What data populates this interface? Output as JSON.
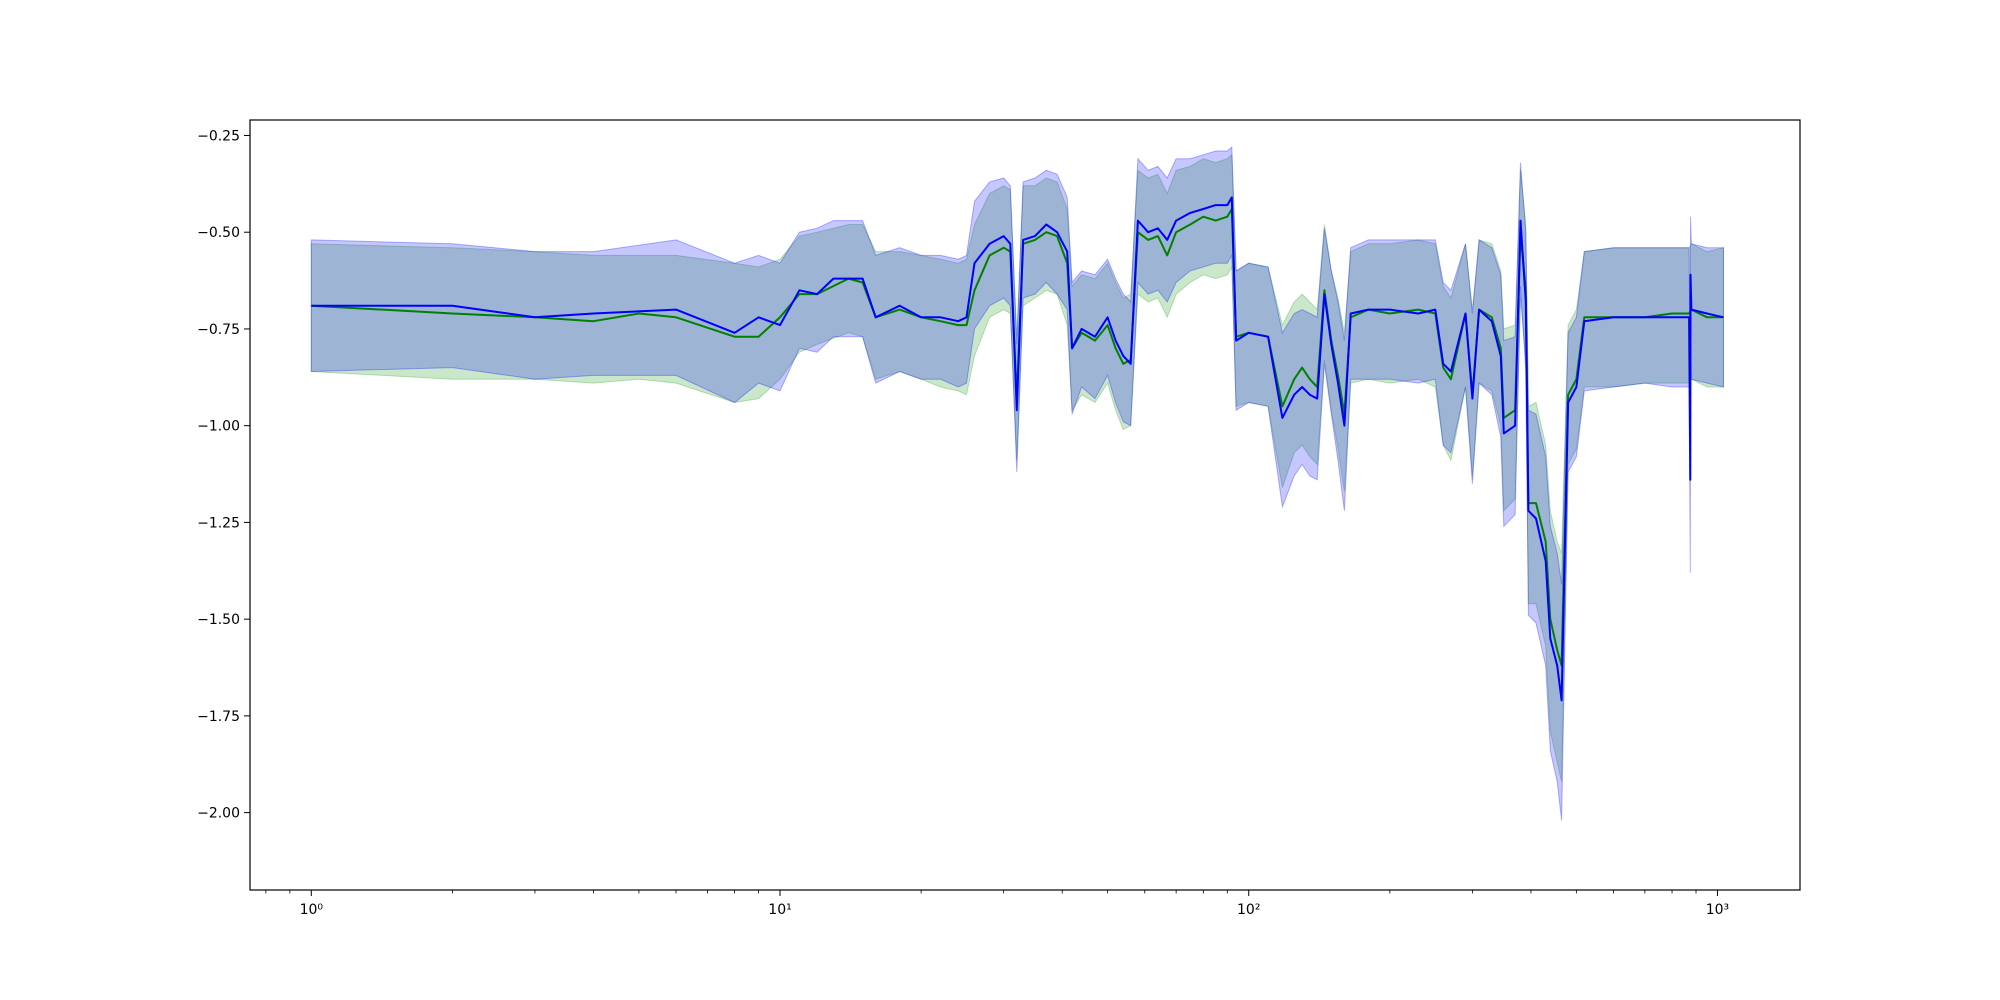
{
  "chart_data": {
    "type": "line",
    "xscale": "log",
    "xlim": [
      0.74,
      1500
    ],
    "ylim": [
      -2.2,
      -0.21
    ],
    "grid": false,
    "x_ticks": [
      {
        "value": 1,
        "label": "10⁰"
      },
      {
        "value": 10,
        "label": "10¹"
      },
      {
        "value": 100,
        "label": "10²"
      },
      {
        "value": 1000,
        "label": "10³"
      }
    ],
    "y_ticks": [
      {
        "value": -0.25,
        "label": "−0.25"
      },
      {
        "value": -0.5,
        "label": "−0.50"
      },
      {
        "value": -0.75,
        "label": "−0.75"
      },
      {
        "value": -1.0,
        "label": "−1.00"
      },
      {
        "value": -1.25,
        "label": "−1.25"
      },
      {
        "value": -1.5,
        "label": "−1.50"
      },
      {
        "value": -1.75,
        "label": "−1.75"
      },
      {
        "value": -2.0,
        "label": "−2.00"
      }
    ],
    "series": [
      {
        "color": "#008000",
        "band_color": "#2ca02c",
        "points": [
          [
            1,
            -0.69,
            -0.53,
            -0.86
          ],
          [
            2,
            -0.71,
            -0.54,
            -0.88
          ],
          [
            3,
            -0.72,
            -0.55,
            -0.88
          ],
          [
            4,
            -0.73,
            -0.56,
            -0.89
          ],
          [
            5,
            -0.71,
            -0.56,
            -0.88
          ],
          [
            6,
            -0.72,
            -0.56,
            -0.89
          ],
          [
            8,
            -0.77,
            -0.58,
            -0.94
          ],
          [
            9,
            -0.77,
            -0.59,
            -0.93
          ],
          [
            10,
            -0.72,
            -0.57,
            -0.88
          ],
          [
            11,
            -0.66,
            -0.51,
            -0.81
          ],
          [
            12,
            -0.66,
            -0.5,
            -0.79
          ],
          [
            14,
            -0.62,
            -0.48,
            -0.76
          ],
          [
            15,
            -0.63,
            -0.48,
            -0.77
          ],
          [
            16,
            -0.72,
            -0.55,
            -0.88
          ],
          [
            18,
            -0.7,
            -0.55,
            -0.86
          ],
          [
            20,
            -0.72,
            -0.56,
            -0.88
          ],
          [
            22,
            -0.73,
            -0.57,
            -0.9
          ],
          [
            24,
            -0.74,
            -0.58,
            -0.91
          ],
          [
            25,
            -0.74,
            -0.57,
            -0.92
          ],
          [
            26,
            -0.65,
            -0.48,
            -0.82
          ],
          [
            28,
            -0.56,
            -0.4,
            -0.72
          ],
          [
            30,
            -0.54,
            -0.38,
            -0.7
          ],
          [
            31,
            -0.55,
            -0.39,
            -0.71
          ],
          [
            32,
            -0.93,
            -0.77,
            -1.09
          ],
          [
            33,
            -0.53,
            -0.38,
            -0.69
          ],
          [
            35,
            -0.52,
            -0.38,
            -0.67
          ],
          [
            37,
            -0.5,
            -0.36,
            -0.65
          ],
          [
            39,
            -0.51,
            -0.37,
            -0.66
          ],
          [
            41,
            -0.58,
            -0.44,
            -0.74
          ],
          [
            42,
            -0.8,
            -0.64,
            -0.96
          ],
          [
            44,
            -0.76,
            -0.61,
            -0.92
          ],
          [
            47,
            -0.78,
            -0.62,
            -0.94
          ],
          [
            50,
            -0.74,
            -0.58,
            -0.89
          ],
          [
            52,
            -0.8,
            -0.63,
            -0.96
          ],
          [
            54,
            -0.84,
            -0.67,
            -1.01
          ],
          [
            56,
            -0.83,
            -0.66,
            -1.0
          ],
          [
            58,
            -0.5,
            -0.34,
            -0.66
          ],
          [
            61,
            -0.52,
            -0.36,
            -0.68
          ],
          [
            64,
            -0.51,
            -0.35,
            -0.67
          ],
          [
            67,
            -0.56,
            -0.4,
            -0.72
          ],
          [
            70,
            -0.5,
            -0.34,
            -0.66
          ],
          [
            75,
            -0.48,
            -0.33,
            -0.63
          ],
          [
            80,
            -0.46,
            -0.31,
            -0.61
          ],
          [
            85,
            -0.47,
            -0.32,
            -0.62
          ],
          [
            90,
            -0.46,
            -0.31,
            -0.61
          ],
          [
            92,
            -0.44,
            -0.3,
            -0.59
          ],
          [
            94,
            -0.77,
            -0.6,
            -0.95
          ],
          [
            100,
            -0.76,
            -0.58,
            -0.94
          ],
          [
            110,
            -0.77,
            -0.59,
            -0.95
          ],
          [
            118,
            -0.95,
            -0.74,
            -1.16
          ],
          [
            125,
            -0.88,
            -0.68,
            -1.07
          ],
          [
            130,
            -0.85,
            -0.66,
            -1.05
          ],
          [
            135,
            -0.88,
            -0.68,
            -1.08
          ],
          [
            140,
            -0.9,
            -0.7,
            -1.1
          ],
          [
            145,
            -0.65,
            -0.48,
            -0.83
          ],
          [
            150,
            -0.78,
            -0.6,
            -0.96
          ],
          [
            155,
            -0.87,
            -0.67,
            -1.06
          ],
          [
            160,
            -0.97,
            -0.76,
            -1.17
          ],
          [
            165,
            -0.72,
            -0.55,
            -0.89
          ],
          [
            180,
            -0.7,
            -0.53,
            -0.88
          ],
          [
            200,
            -0.71,
            -0.53,
            -0.89
          ],
          [
            230,
            -0.7,
            -0.52,
            -0.88
          ],
          [
            250,
            -0.71,
            -0.53,
            -0.9
          ],
          [
            260,
            -0.85,
            -0.64,
            -1.05
          ],
          [
            270,
            -0.88,
            -0.67,
            -1.09
          ],
          [
            290,
            -0.71,
            -0.53,
            -0.9
          ],
          [
            300,
            -0.92,
            -0.7,
            -1.13
          ],
          [
            310,
            -0.7,
            -0.52,
            -0.89
          ],
          [
            330,
            -0.72,
            -0.53,
            -0.91
          ],
          [
            345,
            -0.8,
            -0.6,
            -1.0
          ],
          [
            350,
            -0.98,
            -0.75,
            -1.22
          ],
          [
            370,
            -0.96,
            -0.74,
            -1.19
          ],
          [
            380,
            -0.5,
            -0.34,
            -0.67
          ],
          [
            390,
            -0.65,
            -0.48,
            -0.83
          ],
          [
            395,
            -1.2,
            -0.95,
            -1.46
          ],
          [
            410,
            -1.2,
            -0.94,
            -1.46
          ],
          [
            430,
            -1.3,
            -1.05,
            -1.57
          ],
          [
            440,
            -1.5,
            -1.22,
            -1.79
          ],
          [
            455,
            -1.58,
            -1.3,
            -1.87
          ],
          [
            465,
            -1.62,
            -1.33,
            -1.92
          ],
          [
            480,
            -0.92,
            -0.74,
            -1.1
          ],
          [
            500,
            -0.88,
            -0.7,
            -1.06
          ],
          [
            520,
            -0.72,
            -0.55,
            -0.9
          ],
          [
            600,
            -0.72,
            -0.54,
            -0.9
          ],
          [
            700,
            -0.72,
            -0.54,
            -0.89
          ],
          [
            800,
            -0.71,
            -0.54,
            -0.89
          ],
          [
            870,
            -0.71,
            -0.54,
            -0.89
          ],
          [
            880,
            -0.7,
            -0.53,
            -0.88
          ],
          [
            950,
            -0.72,
            -0.55,
            -0.9
          ],
          [
            1030,
            -0.72,
            -0.54,
            -0.9
          ]
        ]
      },
      {
        "color": "#0000ff",
        "band_color": "#0000ff",
        "points": [
          [
            1,
            -0.69,
            -0.52,
            -0.86
          ],
          [
            2,
            -0.69,
            -0.53,
            -0.85
          ],
          [
            3,
            -0.72,
            -0.55,
            -0.88
          ],
          [
            4,
            -0.71,
            -0.55,
            -0.87
          ],
          [
            6,
            -0.7,
            -0.52,
            -0.87
          ],
          [
            8,
            -0.76,
            -0.58,
            -0.94
          ],
          [
            9,
            -0.72,
            -0.56,
            -0.89
          ],
          [
            10,
            -0.74,
            -0.58,
            -0.91
          ],
          [
            11,
            -0.65,
            -0.5,
            -0.8
          ],
          [
            12,
            -0.66,
            -0.49,
            -0.81
          ],
          [
            13,
            -0.62,
            -0.47,
            -0.77
          ],
          [
            15,
            -0.62,
            -0.47,
            -0.77
          ],
          [
            16,
            -0.72,
            -0.56,
            -0.89
          ],
          [
            18,
            -0.69,
            -0.54,
            -0.86
          ],
          [
            20,
            -0.72,
            -0.56,
            -0.88
          ],
          [
            22,
            -0.72,
            -0.56,
            -0.88
          ],
          [
            24,
            -0.73,
            -0.57,
            -0.9
          ],
          [
            25,
            -0.72,
            -0.56,
            -0.89
          ],
          [
            26,
            -0.58,
            -0.42,
            -0.75
          ],
          [
            28,
            -0.53,
            -0.37,
            -0.69
          ],
          [
            30,
            -0.51,
            -0.36,
            -0.67
          ],
          [
            31,
            -0.53,
            -0.38,
            -0.69
          ],
          [
            32,
            -0.96,
            -0.79,
            -1.12
          ],
          [
            33,
            -0.52,
            -0.37,
            -0.67
          ],
          [
            35,
            -0.51,
            -0.36,
            -0.66
          ],
          [
            37,
            -0.48,
            -0.34,
            -0.63
          ],
          [
            39,
            -0.5,
            -0.35,
            -0.66
          ],
          [
            41,
            -0.55,
            -0.41,
            -0.7
          ],
          [
            42,
            -0.8,
            -0.63,
            -0.97
          ],
          [
            44,
            -0.75,
            -0.6,
            -0.9
          ],
          [
            47,
            -0.77,
            -0.61,
            -0.93
          ],
          [
            50,
            -0.72,
            -0.57,
            -0.87
          ],
          [
            52,
            -0.78,
            -0.62,
            -0.94
          ],
          [
            54,
            -0.82,
            -0.66,
            -0.99
          ],
          [
            56,
            -0.84,
            -0.68,
            -1.0
          ],
          [
            58,
            -0.47,
            -0.31,
            -0.63
          ],
          [
            61,
            -0.5,
            -0.34,
            -0.66
          ],
          [
            64,
            -0.49,
            -0.33,
            -0.65
          ],
          [
            67,
            -0.52,
            -0.36,
            -0.68
          ],
          [
            70,
            -0.47,
            -0.31,
            -0.63
          ],
          [
            75,
            -0.45,
            -0.31,
            -0.6
          ],
          [
            80,
            -0.44,
            -0.3,
            -0.59
          ],
          [
            85,
            -0.43,
            -0.29,
            -0.58
          ],
          [
            90,
            -0.43,
            -0.29,
            -0.58
          ],
          [
            92,
            -0.41,
            -0.28,
            -0.56
          ],
          [
            94,
            -0.78,
            -0.6,
            -0.96
          ],
          [
            100,
            -0.76,
            -0.58,
            -0.94
          ],
          [
            110,
            -0.77,
            -0.59,
            -0.95
          ],
          [
            118,
            -0.98,
            -0.76,
            -1.21
          ],
          [
            125,
            -0.92,
            -0.71,
            -1.13
          ],
          [
            130,
            -0.9,
            -0.7,
            -1.1
          ],
          [
            135,
            -0.92,
            -0.71,
            -1.13
          ],
          [
            140,
            -0.93,
            -0.72,
            -1.14
          ],
          [
            145,
            -0.66,
            -0.49,
            -0.84
          ],
          [
            150,
            -0.79,
            -0.6,
            -0.97
          ],
          [
            155,
            -0.89,
            -0.68,
            -1.09
          ],
          [
            160,
            -1.0,
            -0.78,
            -1.22
          ],
          [
            165,
            -0.71,
            -0.54,
            -0.88
          ],
          [
            180,
            -0.7,
            -0.52,
            -0.88
          ],
          [
            200,
            -0.7,
            -0.52,
            -0.88
          ],
          [
            230,
            -0.71,
            -0.52,
            -0.89
          ],
          [
            250,
            -0.7,
            -0.52,
            -0.88
          ],
          [
            260,
            -0.84,
            -0.63,
            -1.05
          ],
          [
            270,
            -0.86,
            -0.65,
            -1.07
          ],
          [
            290,
            -0.71,
            -0.53,
            -0.9
          ],
          [
            300,
            -0.93,
            -0.71,
            -1.15
          ],
          [
            310,
            -0.7,
            -0.52,
            -0.89
          ],
          [
            330,
            -0.73,
            -0.54,
            -0.92
          ],
          [
            345,
            -0.82,
            -0.61,
            -1.03
          ],
          [
            350,
            -1.02,
            -0.78,
            -1.26
          ],
          [
            370,
            -1.0,
            -0.77,
            -1.23
          ],
          [
            380,
            -0.47,
            -0.32,
            -0.64
          ],
          [
            390,
            -0.68,
            -0.5,
            -0.86
          ],
          [
            395,
            -1.22,
            -0.96,
            -1.49
          ],
          [
            410,
            -1.24,
            -0.97,
            -1.51
          ],
          [
            430,
            -1.35,
            -1.08,
            -1.62
          ],
          [
            440,
            -1.55,
            -1.26,
            -1.84
          ],
          [
            455,
            -1.62,
            -1.33,
            -1.92
          ],
          [
            465,
            -1.71,
            -1.41,
            -2.02
          ],
          [
            480,
            -0.94,
            -0.76,
            -1.12
          ],
          [
            500,
            -0.9,
            -0.72,
            -1.08
          ],
          [
            520,
            -0.73,
            -0.55,
            -0.91
          ],
          [
            600,
            -0.72,
            -0.54,
            -0.9
          ],
          [
            700,
            -0.72,
            -0.54,
            -0.89
          ],
          [
            800,
            -0.72,
            -0.54,
            -0.9
          ],
          [
            870,
            -0.72,
            -0.54,
            -0.9
          ],
          [
            875,
            -1.14,
            -0.94,
            -1.38
          ],
          [
            876,
            -0.61,
            -0.46,
            -0.77
          ],
          [
            880,
            -0.7,
            -0.53,
            -0.88
          ],
          [
            950,
            -0.71,
            -0.54,
            -0.89
          ],
          [
            1030,
            -0.72,
            -0.54,
            -0.9
          ]
        ]
      }
    ]
  }
}
